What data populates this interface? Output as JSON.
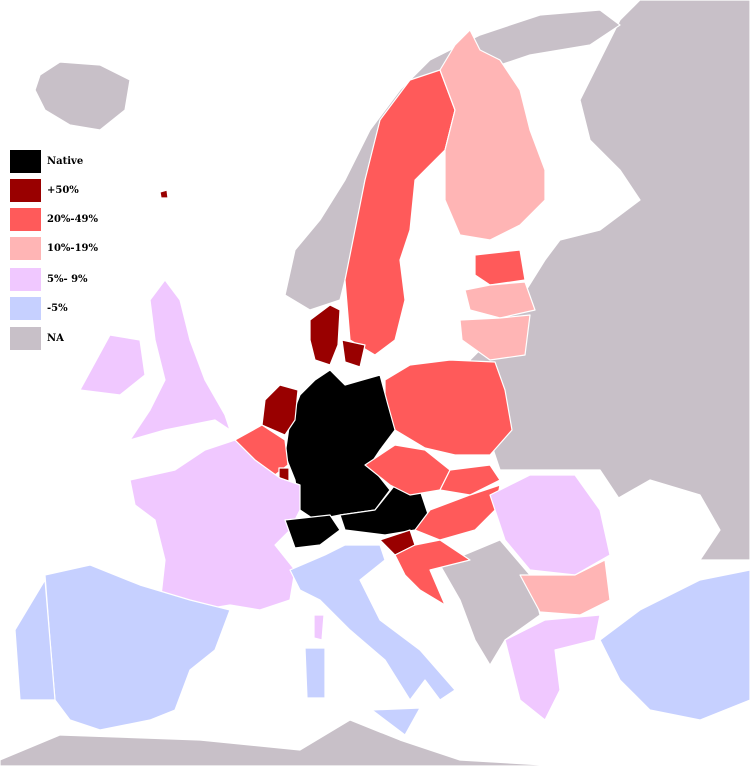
{
  "legend": {
    "items": [
      {
        "label": "Native",
        "color": "#000000",
        "key": "native"
      },
      {
        "label": "+50%",
        "color": "#990000",
        "key": "p50"
      },
      {
        "label": "20%-49%",
        "color": "#ff5a5a",
        "key": "p20"
      },
      {
        "label": "10%-19%",
        "color": "#ffb5b5",
        "key": "p10"
      },
      {
        "label": "5%- 9%",
        "color": "#f0c8ff",
        "key": "p5"
      },
      {
        "label": "-5%",
        "color": "#c6d0ff",
        "key": "m5"
      },
      {
        "label": "NA",
        "color": "#c8c0c8",
        "key": "na"
      }
    ]
  },
  "sea_color": "#ffffff",
  "regions": {
    "iceland": "na",
    "east": "na",
    "balkans": "na",
    "north-africa": "na",
    "norway": "na",
    "faroe": "p50",
    "sweden": "p20",
    "finland": "p10",
    "estonia": "p20",
    "latvia": "p10",
    "lithuania": "p10",
    "poland": "p20",
    "germany": "native",
    "denmark": "p50",
    "denmark-islands": "p50",
    "netherlands": "p50",
    "belgium": "p20",
    "luxembourg": "p50",
    "france": "p5",
    "switzerland": "native",
    "austria": "native",
    "czechia": "p20",
    "slovakia": "p20",
    "hungary": "p20",
    "slovenia": "p50",
    "croatia": "p20",
    "romania": "p5",
    "bulgaria": "p10",
    "greece": "p5",
    "turkey": "m5",
    "italy": "m5",
    "sicily": "m5",
    "sardinia": "m5",
    "corsica": "p5",
    "spain": "m5",
    "portugal": "m5",
    "uk": "p5",
    "ireland": "p5"
  }
}
